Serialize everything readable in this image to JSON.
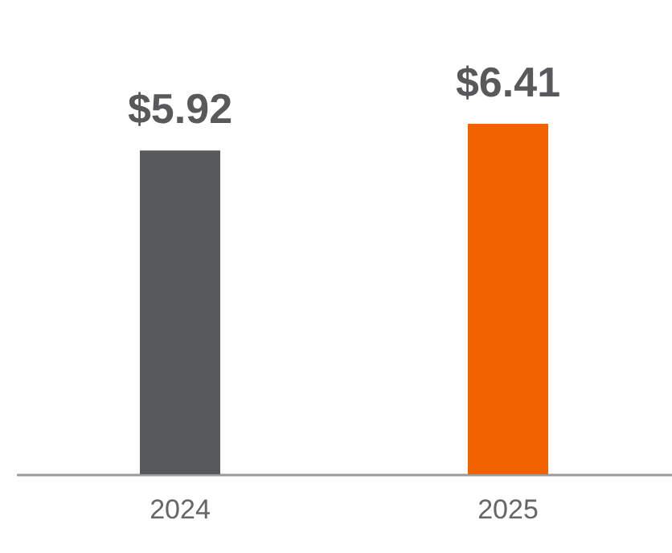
{
  "chart_data": {
    "type": "bar",
    "categories": [
      "2024",
      "2025"
    ],
    "values": [
      5.92,
      6.41
    ],
    "colors": [
      "#58595b",
      "#f26100"
    ],
    "value_labels": [
      "$5.92",
      "$6.41"
    ]
  }
}
